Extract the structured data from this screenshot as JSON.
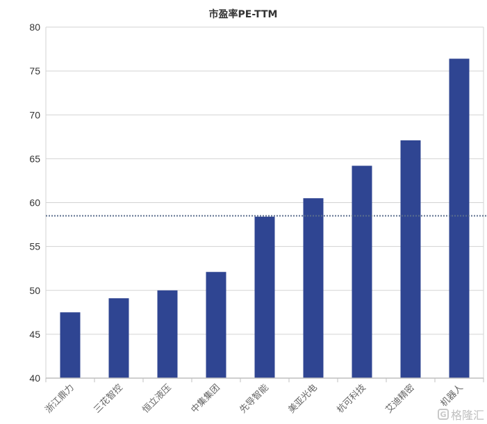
{
  "chart_data": {
    "type": "bar",
    "title": "市盈率PE-TTM",
    "categories": [
      "浙江鼎力",
      "三花智控",
      "恒立液压",
      "中集集团",
      "先导智能",
      "美亚光电",
      "杭可科技",
      "艾迪精密",
      "机器人"
    ],
    "values": [
      47.5,
      49.1,
      50.0,
      52.1,
      58.4,
      60.5,
      64.2,
      67.1,
      76.4
    ],
    "ylim": [
      40,
      80
    ],
    "yticks": [
      40,
      45,
      50,
      55,
      60,
      65,
      70,
      75,
      80
    ],
    "xlabel": "",
    "ylabel": "",
    "reference_line": 58.5,
    "grid": true,
    "legend": "none",
    "colors": {
      "bar": "#2f4592",
      "grid": "#d3d3d3",
      "reference_line": "#5b6e8c",
      "axis": "#bfbfbf"
    }
  },
  "watermark": {
    "text": "格隆汇",
    "logo_letter": "G"
  }
}
